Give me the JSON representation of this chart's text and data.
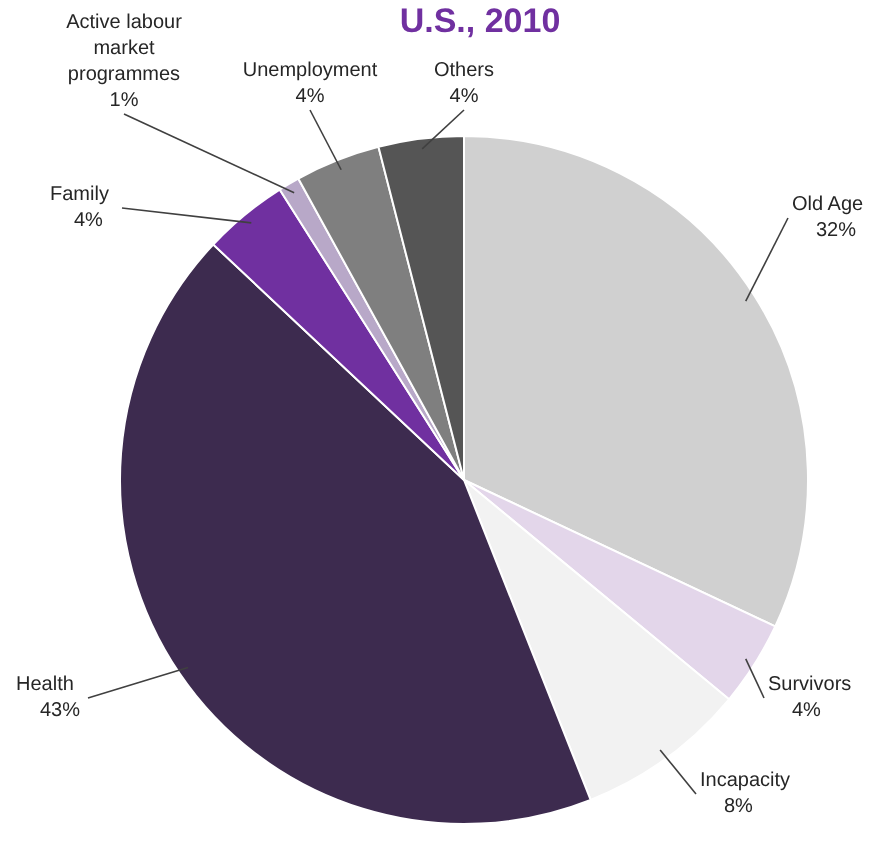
{
  "chart_data": {
    "type": "pie",
    "title": "U.S., 2010",
    "categories": [
      "Old Age",
      "Survivors",
      "Incapacity",
      "Health",
      "Family",
      "Active labour market programmes",
      "Unemployment",
      "Others"
    ],
    "values": [
      32,
      4,
      8,
      43,
      4,
      1,
      4,
      4
    ],
    "value_labels": [
      "32%",
      "4%",
      "8%",
      "43%",
      "4%",
      "1%",
      "4%",
      "4%"
    ],
    "colors": [
      "#d0d0d0",
      "#e3d6ea",
      "#f2f2f2",
      "#3d2b4f",
      "#7030a0",
      "#b8a8c8",
      "#7f7f7f",
      "#555555"
    ]
  }
}
